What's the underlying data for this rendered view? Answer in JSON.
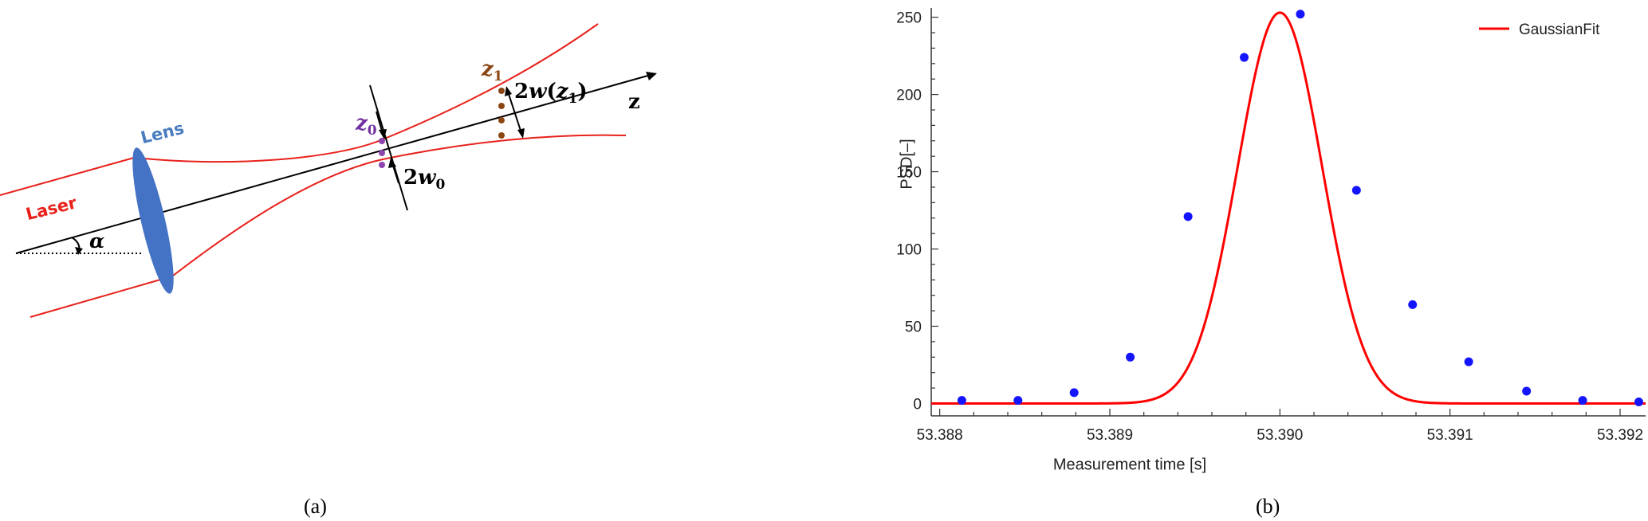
{
  "panel_a": {
    "caption": "(a)",
    "labels": {
      "laser": "Laser",
      "lens": "Lens",
      "z_axis": "z",
      "z0_base": "z",
      "z0_sub": "0",
      "z1_base": "z",
      "z1_sub": "1",
      "waist_coef": "2",
      "waist_w": "w",
      "waist_sub": "0",
      "beam_coef": "2",
      "beam_w": "w",
      "beam_open": "(",
      "beam_z": "z",
      "beam_sub": "1",
      "beam_close": ")",
      "angle": "α"
    },
    "colors": {
      "beam": "#e8211b",
      "lens": "#4472c4",
      "laser_label": "#e8211b",
      "lens_label": "#4a7cc0",
      "z0_label": "#7030a0",
      "z1_label": "#8b4513",
      "z0_dots": "#8e44ad",
      "z1_dots": "#8b4513",
      "axis": "#000000"
    }
  },
  "panel_b": {
    "caption": "(b)",
    "colors": {
      "fit": "#ff0000",
      "points": "#1414ff",
      "axes": "#333333"
    }
  },
  "chart_data": {
    "type": "scatter",
    "title": "",
    "xlabel": "Measurement time [s]",
    "ylabel": "PSD[–]",
    "xlim": [
      53.38795,
      53.39215
    ],
    "ylim": [
      -8,
      256
    ],
    "xticks": [
      53.388,
      53.389,
      53.39,
      53.391,
      53.392
    ],
    "xtick_labels": [
      "53.388",
      "53.389",
      "53.390",
      "53.391",
      "53.392"
    ],
    "yticks": [
      0,
      50,
      100,
      150,
      200,
      250
    ],
    "ytick_labels": [
      "0",
      "50",
      "100",
      "150",
      "200",
      "250"
    ],
    "grid": false,
    "legend_position": "top-right",
    "series": [
      {
        "name": "",
        "kind": "points",
        "x": [
          53.38813,
          53.38846,
          53.38879,
          53.38912,
          53.38946,
          53.38979,
          53.39012,
          53.39045,
          53.39078,
          53.39111,
          53.39145,
          53.39178,
          53.39211
        ],
        "y": [
          2,
          2,
          7,
          30,
          121,
          224,
          252,
          138,
          64,
          27,
          8,
          2,
          1
        ]
      },
      {
        "name": "GaussianFit",
        "kind": "line",
        "model": "gaussian",
        "amplitude": 253,
        "center": 53.39,
        "sigma": 0.000248,
        "offset": 0
      }
    ]
  }
}
